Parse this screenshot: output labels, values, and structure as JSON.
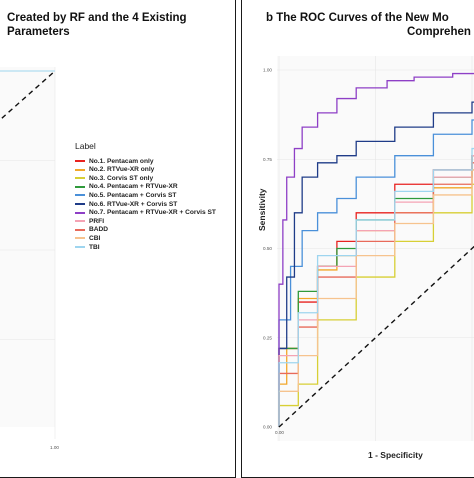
{
  "panel_a": {
    "title_line1": "Created by RF and the 4 Existing",
    "title_line2": "Parameters",
    "x_tick_end": "1.00"
  },
  "panel_b": {
    "title_line1": "b  The ROC Curves of the New Mo",
    "title_line2": "Comprehen",
    "xlabel": "1 - Specificity",
    "ylabel": "Sensitivity"
  },
  "legend": {
    "title": "Label",
    "items": [
      {
        "label": "No.1. Pentacam only",
        "color": "#e8221f"
      },
      {
        "label": "No.2. RTVue-XR only",
        "color": "#f2a72a"
      },
      {
        "label": "No.3. Corvis ST only",
        "color": "#d7cf35"
      },
      {
        "label": "No.4. Pentacam + RTVue-XR",
        "color": "#2f9a3b"
      },
      {
        "label": "No.5. Pentacam + Corvis ST",
        "color": "#4a90d9"
      },
      {
        "label": "No.6. RTVue-XR + Corvis ST",
        "color": "#1f3c88"
      },
      {
        "label": "No.7. Pentacam + RTVue-XR + Corvis ST",
        "color": "#8e3fc6"
      },
      {
        "label": "PRFI",
        "color": "#f4a3b4"
      },
      {
        "label": "BADD",
        "color": "#e86a5a"
      },
      {
        "label": "CBI",
        "color": "#f6c38e"
      },
      {
        "label": "TBI",
        "color": "#9ed5ef"
      }
    ]
  },
  "chart_data": [
    {
      "type": "line",
      "title": "Created by RF and the 4 Existing Parameters",
      "xlim": [
        0,
        1
      ],
      "ylim": [
        0,
        1
      ],
      "x_ticks": [
        "1.00"
      ],
      "reference_line": "diagonal dashed",
      "grid": true,
      "series": [
        {
          "name": "No.1. Pentacam only",
          "color": "#e8221f",
          "x": [
            0,
            0.01,
            0.02,
            0.05,
            0.1,
            0.2,
            0.4,
            0.6,
            1
          ],
          "y": [
            0,
            0.8,
            0.9,
            0.93,
            0.95,
            0.97,
            0.98,
            0.99,
            1
          ]
        },
        {
          "name": "No.2. RTVue-XR only",
          "color": "#f2a72a",
          "x": [
            0,
            0.01,
            0.03,
            0.06,
            0.12,
            0.25,
            0.5,
            0.7,
            1
          ],
          "y": [
            0,
            0.75,
            0.85,
            0.9,
            0.93,
            0.95,
            0.97,
            0.99,
            1
          ]
        },
        {
          "name": "No.3. Corvis ST only",
          "color": "#d7cf35",
          "x": [
            0,
            0.01,
            0.04,
            0.08,
            0.15,
            0.3,
            0.5,
            0.75,
            1
          ],
          "y": [
            0,
            0.7,
            0.82,
            0.88,
            0.92,
            0.95,
            0.97,
            0.99,
            1
          ]
        },
        {
          "name": "No.4. Pentacam + RTVue-XR",
          "color": "#2f9a3b",
          "x": [
            0,
            0.01,
            0.02,
            0.05,
            0.1,
            0.2,
            0.35,
            0.6,
            1
          ],
          "y": [
            0,
            0.82,
            0.9,
            0.94,
            0.96,
            0.97,
            0.98,
            0.99,
            1
          ]
        },
        {
          "name": "No.5. Pentacam + Corvis ST",
          "color": "#4a90d9",
          "x": [
            0,
            0.01,
            0.02,
            0.04,
            0.08,
            0.15,
            0.3,
            0.55,
            1
          ],
          "y": [
            0,
            0.85,
            0.91,
            0.95,
            0.96,
            0.98,
            0.99,
            0.99,
            1
          ]
        },
        {
          "name": "No.6. RTVue-XR + Corvis ST",
          "color": "#1f3c88",
          "x": [
            0,
            0.01,
            0.02,
            0.04,
            0.07,
            0.12,
            0.25,
            0.5,
            1
          ],
          "y": [
            0,
            0.86,
            0.92,
            0.95,
            0.97,
            0.98,
            0.99,
            1,
            1
          ]
        },
        {
          "name": "No.7. Pentacam + RTVue-XR + Corvis ST",
          "color": "#8e3fc6",
          "x": [
            0,
            0.005,
            0.01,
            0.03,
            0.06,
            0.1,
            0.2,
            0.4,
            1
          ],
          "y": [
            0,
            0.9,
            0.94,
            0.96,
            0.98,
            0.99,
            0.99,
            1,
            1
          ]
        },
        {
          "name": "PRFI",
          "color": "#f4a3b4",
          "x": [
            0,
            0.01,
            0.03,
            0.07,
            0.14,
            0.28,
            0.5,
            0.7,
            1
          ],
          "y": [
            0,
            0.78,
            0.86,
            0.9,
            0.93,
            0.95,
            0.97,
            0.99,
            1
          ]
        },
        {
          "name": "BADD",
          "color": "#e86a5a",
          "x": [
            0,
            0.01,
            0.03,
            0.06,
            0.12,
            0.24,
            0.45,
            0.7,
            1
          ],
          "y": [
            0,
            0.8,
            0.87,
            0.91,
            0.94,
            0.96,
            0.97,
            0.99,
            1
          ]
        },
        {
          "name": "CBI",
          "color": "#f6c38e",
          "x": [
            0,
            0.01,
            0.04,
            0.09,
            0.16,
            0.3,
            0.55,
            0.75,
            1
          ],
          "y": [
            0,
            0.74,
            0.83,
            0.89,
            0.92,
            0.95,
            0.97,
            0.99,
            1
          ]
        },
        {
          "name": "TBI",
          "color": "#9ed5ef",
          "x": [
            0,
            0.01,
            0.03,
            0.07,
            0.14,
            0.28,
            0.5,
            0.7,
            1
          ],
          "y": [
            0,
            0.79,
            0.87,
            0.91,
            0.93,
            0.96,
            0.98,
            0.99,
            1
          ]
        }
      ]
    },
    {
      "type": "line",
      "title": "The ROC Curves of the New Models ... Comprehensive",
      "xlabel": "1 - Specificity",
      "ylabel": "Sensitivity",
      "xlim": [
        0,
        1
      ],
      "ylim": [
        0,
        1
      ],
      "x_ticks": [
        "0.00"
      ],
      "y_ticks": [
        "0.00",
        "0.25",
        "0.50",
        "0.75",
        "1.00"
      ],
      "reference_line": "diagonal dashed",
      "grid": true,
      "series": [
        {
          "name": "No.1. Pentacam only",
          "color": "#e8221f",
          "x": [
            0,
            0.05,
            0.1,
            0.15,
            0.2,
            0.3,
            0.4,
            0.5,
            0.6,
            0.7,
            0.8,
            0.9,
            1
          ],
          "y": [
            0,
            0.22,
            0.35,
            0.45,
            0.52,
            0.6,
            0.68,
            0.72,
            0.76,
            0.8,
            0.85,
            0.92,
            1
          ]
        },
        {
          "name": "No.2. RTVue-XR only",
          "color": "#f2a72a",
          "x": [
            0,
            0.02,
            0.05,
            0.1,
            0.15,
            0.2,
            0.3,
            0.4,
            0.5,
            0.6,
            0.7,
            0.8,
            0.9,
            1
          ],
          "y": [
            0,
            0.12,
            0.22,
            0.36,
            0.44,
            0.48,
            0.55,
            0.6,
            0.67,
            0.72,
            0.78,
            0.86,
            0.94,
            1
          ]
        },
        {
          "name": "No.3. Corvis ST only",
          "color": "#d7cf35",
          "x": [
            0,
            0.05,
            0.1,
            0.2,
            0.3,
            0.4,
            0.5,
            0.6,
            0.7,
            0.8,
            0.9,
            1
          ],
          "y": [
            0,
            0.06,
            0.12,
            0.3,
            0.42,
            0.52,
            0.6,
            0.68,
            0.76,
            0.83,
            0.92,
            1
          ]
        },
        {
          "name": "No.4. Pentacam + RTVue-XR",
          "color": "#2f9a3b",
          "x": [
            0,
            0.05,
            0.1,
            0.15,
            0.2,
            0.3,
            0.4,
            0.5,
            0.6,
            0.7,
            0.8,
            0.9,
            1
          ],
          "y": [
            0,
            0.22,
            0.38,
            0.45,
            0.5,
            0.58,
            0.64,
            0.7,
            0.76,
            0.82,
            0.88,
            0.94,
            1
          ]
        },
        {
          "name": "No.5. Pentacam + Corvis ST",
          "color": "#4a90d9",
          "x": [
            0,
            0.03,
            0.06,
            0.1,
            0.15,
            0.2,
            0.3,
            0.4,
            0.5,
            0.6,
            0.7,
            0.8,
            0.9,
            1
          ],
          "y": [
            0,
            0.3,
            0.45,
            0.55,
            0.6,
            0.64,
            0.7,
            0.76,
            0.82,
            0.86,
            0.9,
            0.95,
            0.98,
            1
          ]
        },
        {
          "name": "No.6. RTVue-XR + Corvis ST",
          "color": "#1f3c88",
          "x": [
            0,
            0.02,
            0.04,
            0.06,
            0.1,
            0.15,
            0.2,
            0.3,
            0.4,
            0.5,
            0.6,
            0.7,
            0.8,
            1
          ],
          "y": [
            0,
            0.22,
            0.42,
            0.6,
            0.7,
            0.74,
            0.76,
            0.8,
            0.84,
            0.88,
            0.91,
            0.95,
            0.98,
            1
          ]
        },
        {
          "name": "No.7. Pentacam + RTVue-XR + Corvis ST",
          "color": "#8e3fc6",
          "x": [
            0,
            0.01,
            0.02,
            0.04,
            0.06,
            0.1,
            0.15,
            0.2,
            0.28,
            0.35,
            0.45,
            0.6,
            0.75,
            1
          ],
          "y": [
            0,
            0.4,
            0.58,
            0.7,
            0.78,
            0.84,
            0.88,
            0.92,
            0.95,
            0.97,
            0.98,
            0.99,
            1,
            1
          ]
        },
        {
          "name": "PRFI",
          "color": "#f4a3b4",
          "x": [
            0,
            0.05,
            0.1,
            0.2,
            0.3,
            0.4,
            0.5,
            0.6,
            0.7,
            0.8,
            0.9,
            1
          ],
          "y": [
            0,
            0.2,
            0.3,
            0.45,
            0.55,
            0.63,
            0.7,
            0.76,
            0.82,
            0.88,
            0.94,
            1
          ]
        },
        {
          "name": "BADD",
          "color": "#e86a5a",
          "x": [
            0,
            0.05,
            0.1,
            0.2,
            0.3,
            0.4,
            0.5,
            0.6,
            0.7,
            0.8,
            0.9,
            1
          ],
          "y": [
            0,
            0.15,
            0.28,
            0.42,
            0.52,
            0.6,
            0.68,
            0.74,
            0.8,
            0.87,
            0.93,
            1
          ]
        },
        {
          "name": "CBI",
          "color": "#f6c38e",
          "x": [
            0,
            0.05,
            0.1,
            0.2,
            0.3,
            0.4,
            0.5,
            0.6,
            0.7,
            0.8,
            0.9,
            1
          ],
          "y": [
            0,
            0.1,
            0.2,
            0.36,
            0.48,
            0.57,
            0.65,
            0.72,
            0.79,
            0.86,
            0.93,
            1
          ]
        },
        {
          "name": "TBI",
          "color": "#9ed5ef",
          "x": [
            0,
            0.05,
            0.1,
            0.2,
            0.3,
            0.4,
            0.5,
            0.6,
            0.7,
            0.8,
            0.9,
            1
          ],
          "y": [
            0,
            0.18,
            0.32,
            0.48,
            0.58,
            0.66,
            0.72,
            0.78,
            0.84,
            0.89,
            0.95,
            1
          ]
        }
      ]
    }
  ]
}
